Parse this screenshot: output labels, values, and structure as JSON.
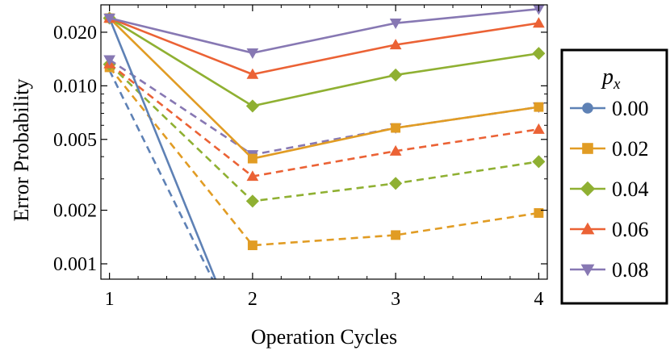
{
  "chart_data": {
    "type": "line",
    "xlabel": "Operation Cycles",
    "ylabel": "Error Probability",
    "yscale": "log",
    "xlim": [
      0.94,
      4.06
    ],
    "ylim": [
      0.00082,
      0.0285
    ],
    "x_ticks": [
      1,
      2,
      3,
      4
    ],
    "x_tick_labels": [
      "1",
      "2",
      "3",
      "4"
    ],
    "y_ticks": [
      0.001,
      0.002,
      0.005,
      0.01,
      0.02
    ],
    "y_tick_labels": [
      "0.001",
      "0.002",
      "0.005",
      "0.010",
      "0.020"
    ],
    "grid": false,
    "legend": {
      "title": "p",
      "title_subscript": "x",
      "placement": "right",
      "entries": [
        "0.00",
        "0.02",
        "0.04",
        "0.06",
        "0.08"
      ]
    },
    "series": [
      {
        "name": "0.00",
        "style": "solid",
        "marker": "circle",
        "color": "#5E81B5",
        "x": [
          1,
          1.74
        ],
        "y": [
          0.024,
          0.00082
        ]
      },
      {
        "name": "0.02",
        "style": "solid",
        "marker": "square",
        "color": "#E19C24",
        "x": [
          1,
          2,
          3,
          4
        ],
        "y": [
          0.024,
          0.0039,
          0.0058,
          0.0076
        ]
      },
      {
        "name": "0.04",
        "style": "solid",
        "marker": "diamond",
        "color": "#8FB032",
        "x": [
          1,
          2,
          3,
          4
        ],
        "y": [
          0.024,
          0.0077,
          0.0115,
          0.0152
        ]
      },
      {
        "name": "0.06",
        "style": "solid",
        "marker": "triangle-up",
        "color": "#EB6235",
        "x": [
          1,
          2,
          3,
          4
        ],
        "y": [
          0.024,
          0.0116,
          0.017,
          0.0225
        ]
      },
      {
        "name": "0.08",
        "style": "solid",
        "marker": "triangle-down",
        "color": "#8778B3",
        "x": [
          1,
          2,
          3,
          4
        ],
        "y": [
          0.024,
          0.0153,
          0.0225,
          0.027
        ]
      },
      {
        "name": "",
        "style": "dashed",
        "marker": "none",
        "color": "#5E81B5",
        "x": [
          1,
          1.72
        ],
        "y": [
          0.0122,
          0.00082
        ]
      },
      {
        "name": "",
        "style": "dashed",
        "marker": "square",
        "color": "#E19C24",
        "x": [
          1,
          2,
          3,
          4
        ],
        "y": [
          0.0127,
          0.00127,
          0.00145,
          0.00193
        ]
      },
      {
        "name": "",
        "style": "dashed",
        "marker": "diamond",
        "color": "#8FB032",
        "x": [
          1,
          2,
          3,
          4
        ],
        "y": [
          0.0132,
          0.00225,
          0.00283,
          0.00375
        ]
      },
      {
        "name": "",
        "style": "dashed",
        "marker": "triangle-up",
        "color": "#EB6235",
        "x": [
          1,
          2,
          3,
          4
        ],
        "y": [
          0.0133,
          0.0031,
          0.0043,
          0.0057
        ]
      },
      {
        "name": "",
        "style": "dashed",
        "marker": "triangle-down",
        "color": "#8778B3",
        "x": [
          1,
          2,
          3,
          4
        ],
        "y": [
          0.014,
          0.0041,
          0.0058,
          0.0076
        ]
      }
    ]
  }
}
